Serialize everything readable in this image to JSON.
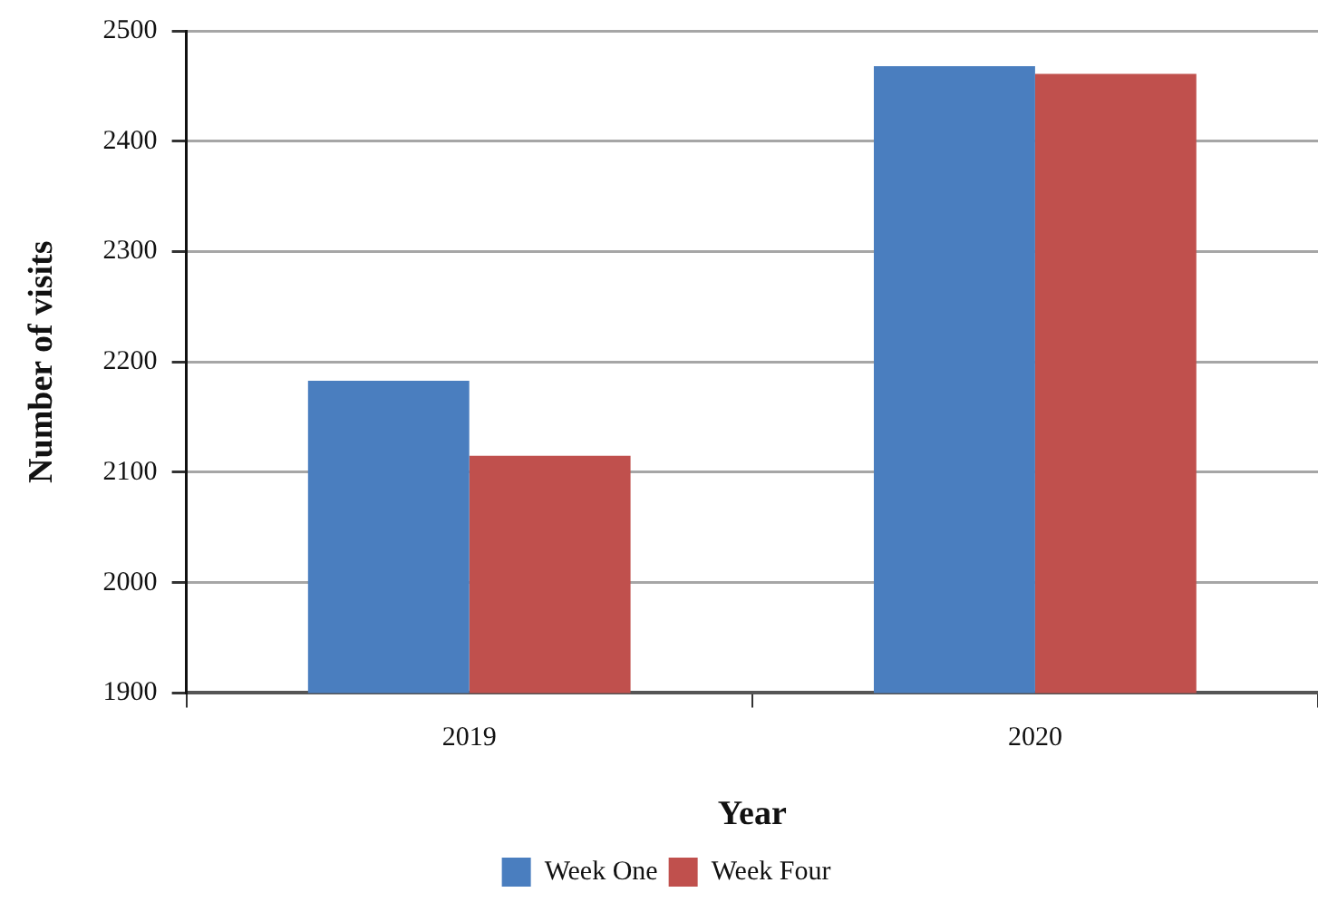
{
  "chart_data": {
    "type": "bar",
    "xlabel": "Year",
    "ylabel": "Number of visits",
    "categories": [
      "2019",
      "2020"
    ],
    "series": [
      {
        "name": "Week One",
        "color": "#4a7ebf",
        "values": [
          2183,
          2468
        ]
      },
      {
        "name": "Week Four",
        "color": "#c0504d",
        "values": [
          2115,
          2461
        ]
      }
    ],
    "ylim": [
      1900,
      2500
    ],
    "yticks": [
      1900,
      2000,
      2100,
      2200,
      2300,
      2400,
      2500
    ],
    "grid": "y",
    "legend": "bottom"
  }
}
